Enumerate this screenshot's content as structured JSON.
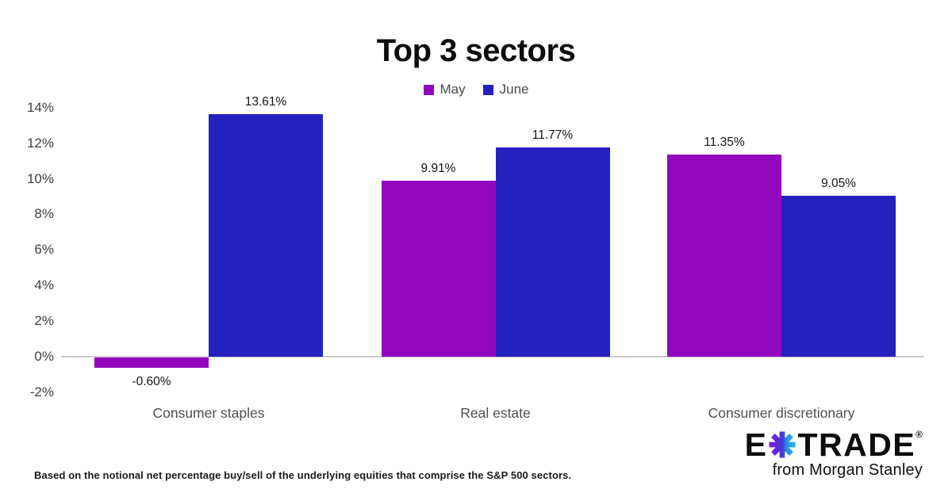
{
  "chart_data": {
    "type": "bar",
    "title": "Top 3 sectors",
    "categories": [
      "Consumer staples",
      "Real estate",
      "Consumer discretionary"
    ],
    "series": [
      {
        "name": "May",
        "color": "#9206BE",
        "values": [
          -0.6,
          9.91,
          11.35
        ],
        "value_labels": [
          "-0.60%",
          "9.91%",
          "11.35%"
        ]
      },
      {
        "name": "June",
        "color": "#2422BF",
        "values": [
          13.61,
          11.77,
          9.05
        ],
        "value_labels": [
          "13.61%",
          "11.77%",
          "9.05%"
        ]
      }
    ],
    "y_axis": {
      "tick_labels": [
        "14%",
        "12%",
        "10%",
        "8%",
        "6%",
        "4%",
        "2%",
        "0%",
        "-2%"
      ],
      "tick_values": [
        14,
        12,
        10,
        8,
        6,
        4,
        2,
        0,
        -2
      ],
      "min": -2,
      "max": 14,
      "unit": "%"
    },
    "legend_position": "top",
    "grid": false,
    "baseline_color": "#cbcbcb"
  },
  "footnote": "Based on the notional net percentage buy/sell of the underlying equities that comprise the S&P 500 sectors.",
  "logo": {
    "part1": "E",
    "part2": "TRADE",
    "registered": "®",
    "tagline": "from Morgan Stanley",
    "star_colors": {
      "purple": "#7B22D9",
      "blue": "#3A3FD8",
      "cyan": "#29BCE9"
    }
  }
}
